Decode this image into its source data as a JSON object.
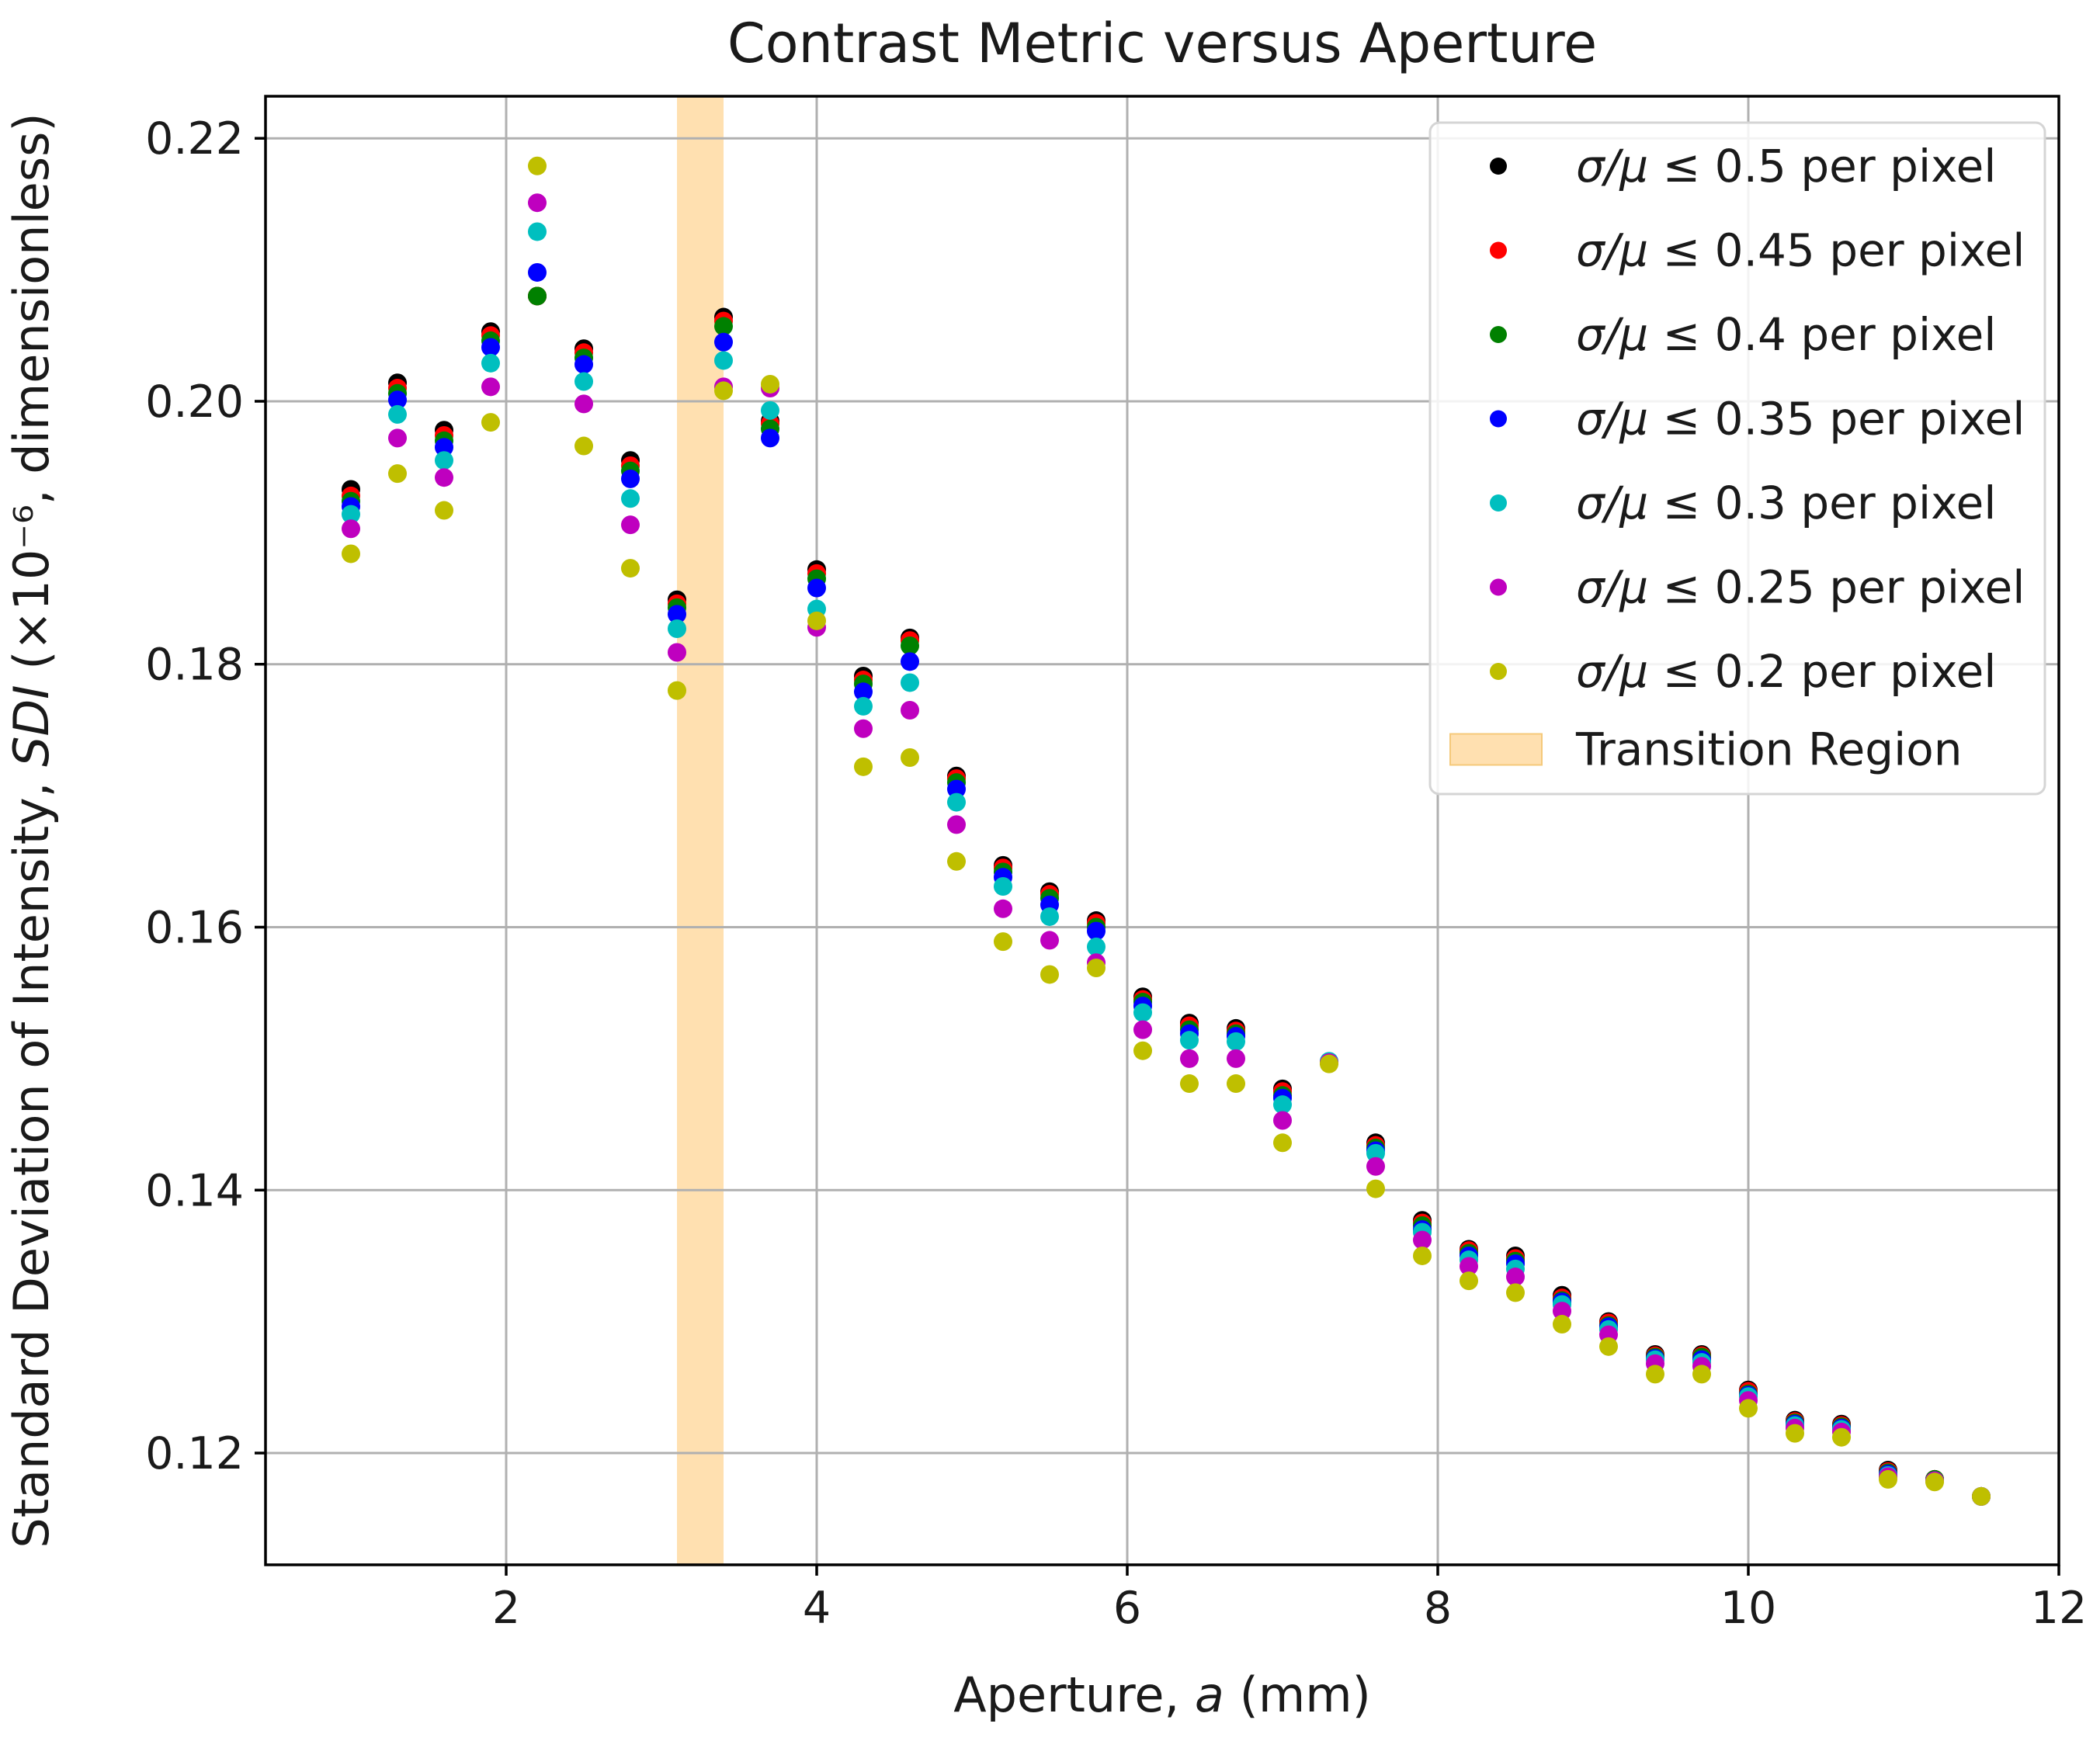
{
  "chart_data": {
    "type": "scatter",
    "title": "Contrast Metric versus Aperture",
    "xlabel": "Aperture, a (mm)",
    "ylabel": "Standard Deviation of Intensity, SDI (×10⁻⁶, dimensionless)",
    "xlim": [
      0.45,
      12.0
    ],
    "ylim": [
      0.1115,
      0.2232
    ],
    "xticks": [
      2,
      4,
      6,
      8,
      10,
      12
    ],
    "xtick_labels": [
      "2",
      "4",
      "6",
      "8",
      "10",
      "12"
    ],
    "yticks": [
      0.12,
      0.14,
      0.16,
      0.18,
      0.2,
      0.22
    ],
    "ytick_labels": [
      "0.12",
      "0.14",
      "0.16",
      "0.18",
      "0.20",
      "0.22"
    ],
    "grid": true,
    "legend_position": "top-right",
    "transition_region": {
      "label": "Transition Region",
      "x_start": 3.1,
      "x_end": 3.4,
      "color": "#ffe0b0"
    },
    "x": [
      1.0,
      1.3,
      1.6,
      1.9,
      2.2,
      2.5,
      2.8,
      3.1,
      3.4,
      3.7,
      4.0,
      4.3,
      4.6,
      4.9,
      5.2,
      5.5,
      5.8,
      6.1,
      6.4,
      6.7,
      7.0,
      7.3,
      7.6,
      7.9,
      8.2,
      8.5,
      8.8,
      9.1,
      9.4,
      9.7,
      10.0,
      10.3,
      10.6,
      10.9,
      11.2,
      11.5
    ],
    "series": [
      {
        "name": "σ/μ ≤ 0.5 per pixel",
        "color": "#000000",
        "values": [
          0.1933,
          0.2014,
          0.1978,
          0.2053,
          0.208,
          0.204,
          0.1955,
          0.1849,
          0.2064,
          0.1985,
          0.1872,
          0.1791,
          0.182,
          0.1715,
          0.1647,
          0.1627,
          0.1605,
          0.1547,
          0.1527,
          0.1523,
          0.1477,
          0.1497,
          0.1436,
          0.1377,
          0.1355,
          0.135,
          0.132,
          0.13,
          0.1275,
          0.1275,
          0.1248,
          0.1225,
          0.1222,
          0.1187,
          0.118,
          0.1167
        ]
      },
      {
        "name": "σ/μ ≤ 0.45 per pixel",
        "color": "#ff0000",
        "values": [
          0.1928,
          0.201,
          0.1974,
          0.205,
          0.208,
          0.2037,
          0.1951,
          0.1846,
          0.2061,
          0.1983,
          0.1869,
          0.1788,
          0.1818,
          0.1713,
          0.1645,
          0.1625,
          0.1603,
          0.1545,
          0.1525,
          0.1521,
          0.1475,
          0.1497,
          0.1434,
          0.1375,
          0.1354,
          0.1348,
          0.1318,
          0.1299,
          0.1274,
          0.1274,
          0.1247,
          0.1224,
          0.1221,
          0.1186,
          0.118,
          0.1167
        ]
      },
      {
        "name": "σ/μ ≤ 0.4 per pixel",
        "color": "#008000",
        "values": [
          0.1924,
          0.2006,
          0.197,
          0.2046,
          0.208,
          0.2033,
          0.1947,
          0.1843,
          0.2057,
          0.1979,
          0.1865,
          0.1785,
          0.1814,
          0.171,
          0.1642,
          0.1622,
          0.16,
          0.1543,
          0.1522,
          0.1519,
          0.1472,
          0.1497,
          0.1432,
          0.1373,
          0.1352,
          0.1346,
          0.1316,
          0.1297,
          0.1273,
          0.1273,
          0.1245,
          0.1223,
          0.122,
          0.1185,
          0.118,
          0.1167
        ]
      },
      {
        "name": "σ/μ ≤ 0.35 per pixel",
        "color": "#0000ff",
        "values": [
          0.192,
          0.2001,
          0.1965,
          0.2041,
          0.2098,
          0.2028,
          0.1941,
          0.1838,
          0.2045,
          0.1972,
          0.1858,
          0.1779,
          0.1802,
          0.1705,
          0.1638,
          0.1617,
          0.1597,
          0.154,
          0.1519,
          0.1517,
          0.147,
          0.1497,
          0.143,
          0.137,
          0.135,
          0.1344,
          0.1315,
          0.1296,
          0.1272,
          0.1271,
          0.1244,
          0.1222,
          0.1219,
          0.1184,
          0.1179,
          0.1167
        ]
      },
      {
        "name": "σ/μ ≤ 0.3 per pixel",
        "color": "#00bfbf",
        "values": [
          0.1914,
          0.199,
          0.1955,
          0.2029,
          0.2129,
          0.2015,
          0.1926,
          0.1827,
          0.2031,
          0.1993,
          0.1842,
          0.1768,
          0.1786,
          0.1695,
          0.1631,
          0.1608,
          0.1585,
          0.1535,
          0.1514,
          0.1513,
          0.1465,
          0.1498,
          0.1428,
          0.1368,
          0.1347,
          0.134,
          0.1313,
          0.1294,
          0.1271,
          0.1269,
          0.1243,
          0.1221,
          0.1218,
          0.1183,
          0.1179,
          0.1167
        ]
      },
      {
        "name": "σ/μ ≤ 0.25 per pixel",
        "color": "#bf00bf",
        "values": [
          0.1903,
          0.1972,
          0.1942,
          0.2011,
          0.2151,
          0.1998,
          0.1906,
          0.1809,
          0.2011,
          0.201,
          0.1828,
          0.1751,
          0.1765,
          0.1678,
          0.1614,
          0.159,
          0.1573,
          0.1522,
          0.15,
          0.15,
          0.1453,
          0.1497,
          0.1418,
          0.1362,
          0.1342,
          0.1334,
          0.1308,
          0.129,
          0.1268,
          0.1266,
          0.124,
          0.1219,
          0.1216,
          0.1182,
          0.1179,
          0.1167
        ]
      },
      {
        "name": "σ/μ ≤ 0.2 per pixel",
        "color": "#bfbf00",
        "values": [
          0.1884,
          0.1945,
          0.1917,
          0.1984,
          0.2179,
          0.1966,
          0.1873,
          0.178,
          0.2008,
          0.2013,
          0.1833,
          0.1722,
          0.1729,
          0.165,
          0.1589,
          0.1564,
          0.1569,
          0.1506,
          0.1481,
          0.1481,
          0.1436,
          0.1496,
          0.1401,
          0.135,
          0.1331,
          0.1322,
          0.1298,
          0.1281,
          0.126,
          0.126,
          0.1234,
          0.1215,
          0.1212,
          0.118,
          0.1178,
          0.1167
        ]
      }
    ]
  }
}
